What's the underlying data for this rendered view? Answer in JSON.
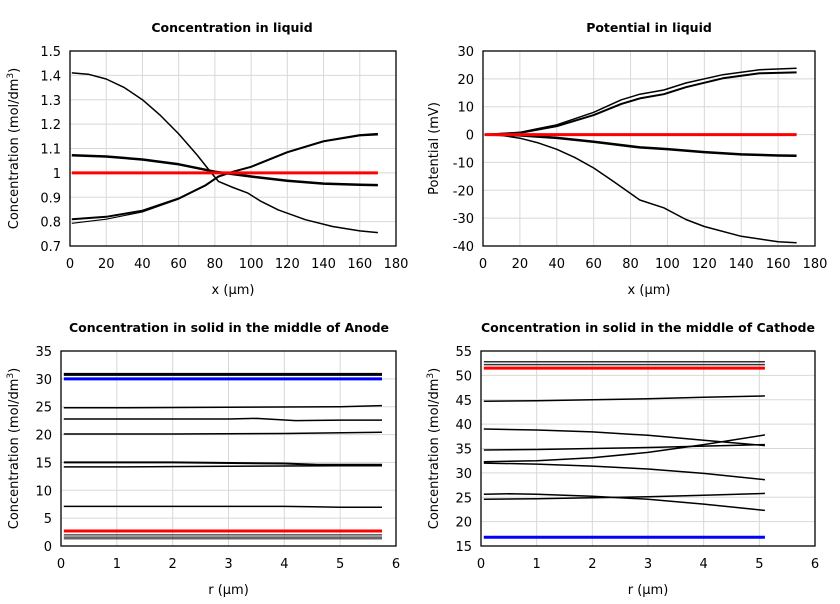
{
  "chart_data": [
    {
      "type": "line",
      "title": "Concentration in liquid",
      "xlabel": "x (µm)",
      "ylabel": "Concentration (mol/dm",
      "ylabel_sup": "3",
      "ylabel_end": ")",
      "xlim": [
        0,
        180
      ],
      "ylim": [
        0.7,
        1.5
      ],
      "xticks": [
        0,
        20,
        40,
        60,
        80,
        100,
        120,
        140,
        160,
        180
      ],
      "yticks": [
        0.7,
        0.8,
        0.9,
        1,
        1.1,
        1.2,
        1.3,
        1.4,
        1.5
      ],
      "grid": true,
      "series": [
        {
          "color": "#000000",
          "width": 1.5,
          "points": [
            [
              1,
              1.41
            ],
            [
              10,
              1.405
            ],
            [
              20,
              1.385
            ],
            [
              30,
              1.35
            ],
            [
              40,
              1.3
            ],
            [
              50,
              1.235
            ],
            [
              60,
              1.16
            ],
            [
              70,
              1.075
            ],
            [
              78,
              1.0
            ],
            [
              82,
              0.965
            ],
            [
              90,
              0.94
            ],
            [
              98,
              0.918
            ],
            [
              105,
              0.885
            ],
            [
              115,
              0.848
            ],
            [
              130,
              0.808
            ],
            [
              145,
              0.78
            ],
            [
              160,
              0.762
            ],
            [
              170,
              0.755
            ]
          ]
        },
        {
          "color": "#000000",
          "width": 2.5,
          "points": [
            [
              1,
              1.072
            ],
            [
              20,
              1.067
            ],
            [
              40,
              1.055
            ],
            [
              60,
              1.035
            ],
            [
              80,
              1.005
            ],
            [
              100,
              0.985
            ],
            [
              120,
              0.968
            ],
            [
              140,
              0.956
            ],
            [
              160,
              0.951
            ],
            [
              170,
              0.95
            ]
          ]
        },
        {
          "color": "#000000",
          "width": 2,
          "points": [
            [
              1,
              0.81
            ],
            [
              20,
              0.82
            ],
            [
              40,
              0.845
            ],
            [
              60,
              0.895
            ],
            [
              75,
              0.95
            ],
            [
              82,
              0.985
            ],
            [
              90,
              1.005
            ],
            [
              100,
              1.025
            ],
            [
              120,
              1.085
            ],
            [
              140,
              1.13
            ],
            [
              160,
              1.155
            ],
            [
              170,
              1.16
            ]
          ]
        },
        {
          "color": "#000000",
          "width": 1.2,
          "points": [
            [
              1,
              0.793
            ],
            [
              20,
              0.81
            ],
            [
              40,
              0.84
            ],
            [
              60,
              0.893
            ],
            [
              75,
              0.948
            ],
            [
              82,
              0.985
            ],
            [
              90,
              1.004
            ],
            [
              100,
              1.024
            ],
            [
              120,
              1.083
            ],
            [
              140,
              1.128
            ],
            [
              160,
              1.152
            ],
            [
              170,
              1.156
            ]
          ]
        },
        {
          "color": "#ff0000",
          "width": 3,
          "points": [
            [
              1,
              1.0
            ],
            [
              170,
              1.0
            ]
          ]
        }
      ]
    },
    {
      "type": "line",
      "title": "Potential in liquid",
      "xlabel": "x (µm)",
      "ylabel": "Potential (mV)",
      "xlim": [
        0,
        180
      ],
      "ylim": [
        -40,
        30
      ],
      "xticks": [
        0,
        20,
        40,
        60,
        80,
        100,
        120,
        140,
        160,
        180
      ],
      "yticks": [
        -40,
        -30,
        -20,
        -10,
        0,
        10,
        20,
        30
      ],
      "grid": true,
      "series": [
        {
          "color": "#000000",
          "width": 1.5,
          "points": [
            [
              1,
              0
            ],
            [
              20,
              0.8
            ],
            [
              40,
              3.5
            ],
            [
              60,
              8
            ],
            [
              75,
              12.5
            ],
            [
              85,
              14.5
            ],
            [
              98,
              16
            ],
            [
              110,
              18.5
            ],
            [
              130,
              21.5
            ],
            [
              150,
              23.3
            ],
            [
              170,
              23.8
            ]
          ]
        },
        {
          "color": "#000000",
          "width": 2,
          "points": [
            [
              1,
              0
            ],
            [
              20,
              0.6
            ],
            [
              40,
              3
            ],
            [
              60,
              7
            ],
            [
              75,
              11
            ],
            [
              85,
              13
            ],
            [
              98,
              14.5
            ],
            [
              110,
              17
            ],
            [
              130,
              20.2
            ],
            [
              150,
              22
            ],
            [
              170,
              22.3
            ]
          ]
        },
        {
          "color": "#000000",
          "width": 2.5,
          "points": [
            [
              1,
              0
            ],
            [
              20,
              -0.3
            ],
            [
              40,
              -1.2
            ],
            [
              60,
              -2.6
            ],
            [
              85,
              -4.6
            ],
            [
              100,
              -5.2
            ],
            [
              120,
              -6.3
            ],
            [
              140,
              -7.1
            ],
            [
              160,
              -7.5
            ],
            [
              170,
              -7.6
            ]
          ]
        },
        {
          "color": "#000000",
          "width": 1.5,
          "points": [
            [
              1,
              0
            ],
            [
              10,
              -0.3
            ],
            [
              20,
              -1.3
            ],
            [
              30,
              -3
            ],
            [
              40,
              -5.3
            ],
            [
              50,
              -8.3
            ],
            [
              60,
              -12
            ],
            [
              70,
              -16.5
            ],
            [
              85,
              -23.5
            ],
            [
              98,
              -26.3
            ],
            [
              110,
              -30.5
            ],
            [
              120,
              -33
            ],
            [
              140,
              -36.5
            ],
            [
              160,
              -38.5
            ],
            [
              170,
              -38.8
            ]
          ]
        },
        {
          "color": "#ff0000",
          "width": 3,
          "points": [
            [
              1,
              0
            ],
            [
              170,
              0
            ]
          ]
        }
      ]
    },
    {
      "type": "line",
      "title": "Concentration in solid in the middle of Anode",
      "xlabel": "r (µm)",
      "ylabel": "Concentration (mol/dm",
      "ylabel_sup": "3",
      "ylabel_end": ")",
      "xlim": [
        0,
        6
      ],
      "ylim": [
        0,
        35
      ],
      "xticks": [
        0,
        1,
        2,
        3,
        4,
        5,
        6
      ],
      "yticks": [
        0,
        5,
        10,
        15,
        20,
        25,
        30,
        35
      ],
      "grid": true,
      "series": [
        {
          "color": "#000000",
          "width": 3,
          "points": [
            [
              0.05,
              30.8
            ],
            [
              5.75,
              30.8
            ]
          ]
        },
        {
          "color": "#0000ff",
          "width": 3,
          "points": [
            [
              0.05,
              30.0
            ],
            [
              5.75,
              30.0
            ]
          ]
        },
        {
          "color": "#000000",
          "width": 1.5,
          "points": [
            [
              0.05,
              24.8
            ],
            [
              1,
              24.8
            ],
            [
              3,
              24.9
            ],
            [
              5,
              25.0
            ],
            [
              5.75,
              25.2
            ]
          ]
        },
        {
          "color": "#000000",
          "width": 1.5,
          "points": [
            [
              0.05,
              22.8
            ],
            [
              3,
              22.8
            ],
            [
              3.5,
              22.9
            ],
            [
              4.2,
              22.5
            ],
            [
              5,
              22.6
            ],
            [
              5.75,
              22.6
            ]
          ]
        },
        {
          "color": "#000000",
          "width": 1.5,
          "points": [
            [
              0.05,
              20.1
            ],
            [
              2,
              20.1
            ],
            [
              4,
              20.2
            ],
            [
              5.75,
              20.4
            ]
          ]
        },
        {
          "color": "#000000",
          "width": 2,
          "points": [
            [
              0.05,
              15.0
            ],
            [
              2,
              15.0
            ],
            [
              4,
              14.8
            ],
            [
              4.6,
              14.6
            ],
            [
              5.75,
              14.6
            ]
          ]
        },
        {
          "color": "#000000",
          "width": 1.5,
          "points": [
            [
              0.05,
              14.2
            ],
            [
              1,
              14.2
            ],
            [
              3,
              14.3
            ],
            [
              5,
              14.4
            ],
            [
              5.75,
              14.4
            ]
          ]
        },
        {
          "color": "#000000",
          "width": 1.5,
          "points": [
            [
              0.05,
              7.1
            ],
            [
              3,
              7.1
            ],
            [
              4,
              7.1
            ],
            [
              4.5,
              7.05
            ],
            [
              5,
              6.95
            ],
            [
              5.75,
              6.95
            ]
          ]
        },
        {
          "color": "#ff0000",
          "width": 3,
          "points": [
            [
              0.05,
              2.7
            ],
            [
              5.75,
              2.7
            ]
          ]
        },
        {
          "color": "#333333",
          "width": 1.2,
          "points": [
            [
              0.05,
              2.0
            ],
            [
              5.75,
              2.0
            ]
          ]
        },
        {
          "color": "#333333",
          "width": 1.2,
          "points": [
            [
              0.05,
              1.6
            ],
            [
              5.75,
              1.6
            ]
          ]
        },
        {
          "color": "#333333",
          "width": 1.2,
          "points": [
            [
              0.05,
              1.3
            ],
            [
              5.75,
              1.3
            ]
          ]
        }
      ]
    },
    {
      "type": "line",
      "title": "Concentration in solid in the middle of Cathode",
      "xlabel": "r (µm)",
      "ylabel": "Concentration (mol/dm",
      "ylabel_sup": "3",
      "ylabel_end": ")",
      "xlim": [
        0,
        6
      ],
      "ylim": [
        15,
        55
      ],
      "xticks": [
        0,
        1,
        2,
        3,
        4,
        5,
        6
      ],
      "yticks": [
        15,
        20,
        25,
        30,
        35,
        40,
        45,
        50,
        55
      ],
      "grid": true,
      "series": [
        {
          "color": "#333333",
          "width": 1.5,
          "points": [
            [
              0.05,
              52.8
            ],
            [
              5.1,
              52.8
            ]
          ]
        },
        {
          "color": "#333333",
          "width": 1.5,
          "points": [
            [
              0.05,
              52.2
            ],
            [
              5.1,
              52.2
            ]
          ]
        },
        {
          "color": "#ff0000",
          "width": 3,
          "points": [
            [
              0.05,
              51.5
            ],
            [
              5.1,
              51.5
            ]
          ]
        },
        {
          "color": "#000000",
          "width": 1.5,
          "points": [
            [
              0.05,
              44.7
            ],
            [
              1,
              44.8
            ],
            [
              2,
              45.0
            ],
            [
              3,
              45.2
            ],
            [
              4,
              45.5
            ],
            [
              5.1,
              45.8
            ]
          ]
        },
        {
          "color": "#000000",
          "width": 1.5,
          "points": [
            [
              0.05,
              39.0
            ],
            [
              1,
              38.8
            ],
            [
              2,
              38.4
            ],
            [
              3,
              37.7
            ],
            [
              4,
              36.7
            ],
            [
              5.1,
              35.6
            ]
          ]
        },
        {
          "color": "#000000",
          "width": 1.5,
          "points": [
            [
              0.05,
              34.7
            ],
            [
              1,
              34.8
            ],
            [
              2,
              35.0
            ],
            [
              3,
              35.2
            ],
            [
              4,
              35.5
            ],
            [
              5.1,
              35.8
            ]
          ]
        },
        {
          "color": "#000000",
          "width": 1.5,
          "points": [
            [
              0.05,
              32.3
            ],
            [
              1,
              32.5
            ],
            [
              2,
              33.1
            ],
            [
              3,
              34.2
            ],
            [
              4,
              35.8
            ],
            [
              5.1,
              37.8
            ]
          ]
        },
        {
          "color": "#000000",
          "width": 1.5,
          "points": [
            [
              0.05,
              32.0
            ],
            [
              1,
              31.8
            ],
            [
              2,
              31.4
            ],
            [
              3,
              30.8
            ],
            [
              4,
              29.9
            ],
            [
              5.1,
              28.6
            ]
          ]
        },
        {
          "color": "#000000",
          "width": 1.5,
          "points": [
            [
              0.05,
              25.6
            ],
            [
              0.5,
              25.7
            ],
            [
              1,
              25.6
            ],
            [
              2,
              25.2
            ],
            [
              3,
              24.6
            ],
            [
              4,
              23.6
            ],
            [
              5.1,
              22.3
            ]
          ]
        },
        {
          "color": "#000000",
          "width": 1.5,
          "points": [
            [
              0.05,
              24.6
            ],
            [
              1,
              24.7
            ],
            [
              2,
              24.9
            ],
            [
              3,
              25.1
            ],
            [
              4,
              25.4
            ],
            [
              5.1,
              25.8
            ]
          ]
        },
        {
          "color": "#0000ff",
          "width": 3,
          "points": [
            [
              0.05,
              16.8
            ],
            [
              5.1,
              16.8
            ]
          ]
        }
      ]
    }
  ]
}
